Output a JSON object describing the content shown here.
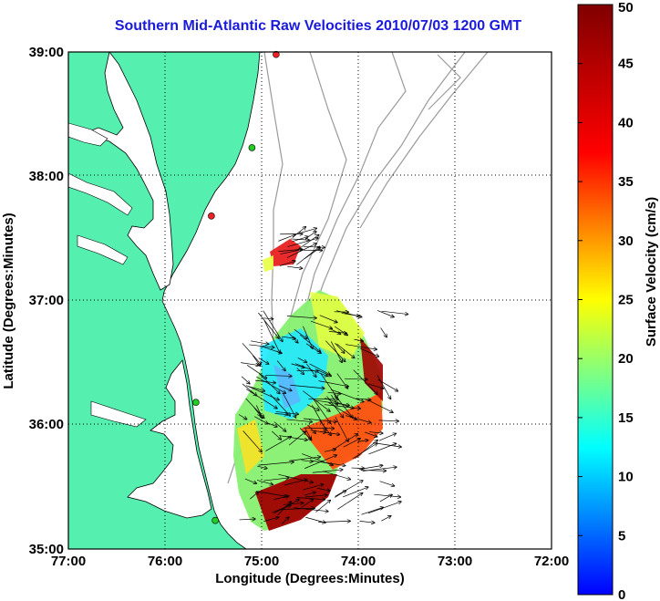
{
  "title": "Southern Mid-Atlantic Raw Velocities 2010/07/03 1200 GMT",
  "axes": {
    "xlabel": "Longitude (Degrees:Minutes)",
    "ylabel": "Latitude (Degrees:Minutes)",
    "xticks": [
      "77:00",
      "76:00",
      "75:00",
      "74:00",
      "73:00",
      "72:00"
    ],
    "yticks": [
      "39:00",
      "38:00",
      "37:00",
      "36:00",
      "35:00"
    ]
  },
  "colorbar": {
    "label": "Surface Velocity (cm/s)",
    "ticks": [
      "0",
      "5",
      "10",
      "15",
      "20",
      "25",
      "30",
      "35",
      "40",
      "45",
      "50"
    ],
    "min": 0,
    "max": 50
  },
  "colors": {
    "land": "#55f0b0",
    "water": "#ffffff",
    "title": "#1a1adc",
    "bathymetry": "#9a9a9a",
    "station_green": "#22cc22",
    "station_red": "#ee2222"
  },
  "stations": [
    {
      "color": "red",
      "lon": -74.85,
      "lat": 38.98
    },
    {
      "color": "green",
      "lon": -75.1,
      "lat": 38.23
    },
    {
      "color": "red",
      "lon": -75.52,
      "lat": 37.68
    },
    {
      "color": "green",
      "lon": -75.68,
      "lat": 36.18
    },
    {
      "color": "green",
      "lon": -75.48,
      "lat": 35.23
    }
  ]
}
